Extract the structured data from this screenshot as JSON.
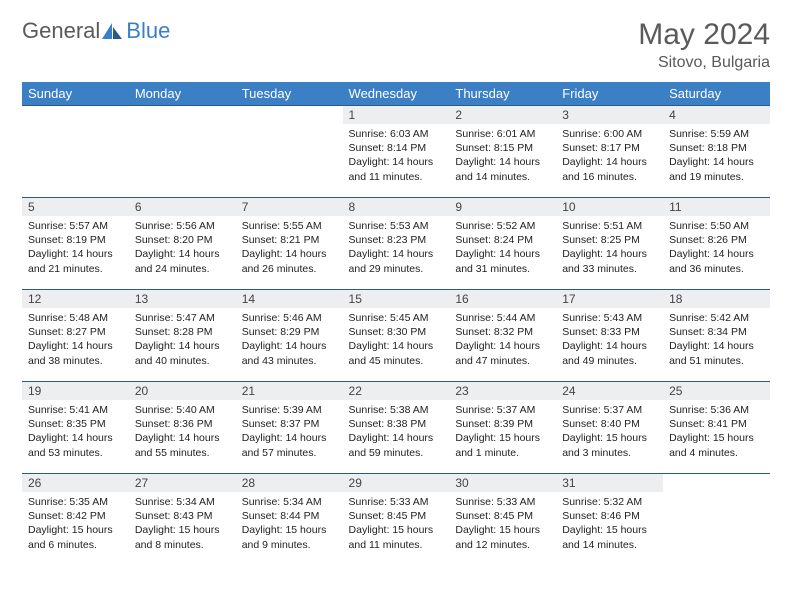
{
  "logo": {
    "part1": "General",
    "part2": "Blue"
  },
  "title": "May 2024",
  "location": "Sitovo, Bulgaria",
  "colors": {
    "headerBg": "#3b7fc4",
    "dayBg": "#eceef0",
    "rule": "#2a5a8a",
    "text": "#222",
    "muted": "#5a5a5a"
  },
  "weekdays": [
    "Sunday",
    "Monday",
    "Tuesday",
    "Wednesday",
    "Thursday",
    "Friday",
    "Saturday"
  ],
  "startOffset": 3,
  "days": [
    {
      "n": "1",
      "sr": "6:03 AM",
      "ss": "8:14 PM",
      "dl": "14 hours and 11 minutes."
    },
    {
      "n": "2",
      "sr": "6:01 AM",
      "ss": "8:15 PM",
      "dl": "14 hours and 14 minutes."
    },
    {
      "n": "3",
      "sr": "6:00 AM",
      "ss": "8:17 PM",
      "dl": "14 hours and 16 minutes."
    },
    {
      "n": "4",
      "sr": "5:59 AM",
      "ss": "8:18 PM",
      "dl": "14 hours and 19 minutes."
    },
    {
      "n": "5",
      "sr": "5:57 AM",
      "ss": "8:19 PM",
      "dl": "14 hours and 21 minutes."
    },
    {
      "n": "6",
      "sr": "5:56 AM",
      "ss": "8:20 PM",
      "dl": "14 hours and 24 minutes."
    },
    {
      "n": "7",
      "sr": "5:55 AM",
      "ss": "8:21 PM",
      "dl": "14 hours and 26 minutes."
    },
    {
      "n": "8",
      "sr": "5:53 AM",
      "ss": "8:23 PM",
      "dl": "14 hours and 29 minutes."
    },
    {
      "n": "9",
      "sr": "5:52 AM",
      "ss": "8:24 PM",
      "dl": "14 hours and 31 minutes."
    },
    {
      "n": "10",
      "sr": "5:51 AM",
      "ss": "8:25 PM",
      "dl": "14 hours and 33 minutes."
    },
    {
      "n": "11",
      "sr": "5:50 AM",
      "ss": "8:26 PM",
      "dl": "14 hours and 36 minutes."
    },
    {
      "n": "12",
      "sr": "5:48 AM",
      "ss": "8:27 PM",
      "dl": "14 hours and 38 minutes."
    },
    {
      "n": "13",
      "sr": "5:47 AM",
      "ss": "8:28 PM",
      "dl": "14 hours and 40 minutes."
    },
    {
      "n": "14",
      "sr": "5:46 AM",
      "ss": "8:29 PM",
      "dl": "14 hours and 43 minutes."
    },
    {
      "n": "15",
      "sr": "5:45 AM",
      "ss": "8:30 PM",
      "dl": "14 hours and 45 minutes."
    },
    {
      "n": "16",
      "sr": "5:44 AM",
      "ss": "8:32 PM",
      "dl": "14 hours and 47 minutes."
    },
    {
      "n": "17",
      "sr": "5:43 AM",
      "ss": "8:33 PM",
      "dl": "14 hours and 49 minutes."
    },
    {
      "n": "18",
      "sr": "5:42 AM",
      "ss": "8:34 PM",
      "dl": "14 hours and 51 minutes."
    },
    {
      "n": "19",
      "sr": "5:41 AM",
      "ss": "8:35 PM",
      "dl": "14 hours and 53 minutes."
    },
    {
      "n": "20",
      "sr": "5:40 AM",
      "ss": "8:36 PM",
      "dl": "14 hours and 55 minutes."
    },
    {
      "n": "21",
      "sr": "5:39 AM",
      "ss": "8:37 PM",
      "dl": "14 hours and 57 minutes."
    },
    {
      "n": "22",
      "sr": "5:38 AM",
      "ss": "8:38 PM",
      "dl": "14 hours and 59 minutes."
    },
    {
      "n": "23",
      "sr": "5:37 AM",
      "ss": "8:39 PM",
      "dl": "15 hours and 1 minute."
    },
    {
      "n": "24",
      "sr": "5:37 AM",
      "ss": "8:40 PM",
      "dl": "15 hours and 3 minutes."
    },
    {
      "n": "25",
      "sr": "5:36 AM",
      "ss": "8:41 PM",
      "dl": "15 hours and 4 minutes."
    },
    {
      "n": "26",
      "sr": "5:35 AM",
      "ss": "8:42 PM",
      "dl": "15 hours and 6 minutes."
    },
    {
      "n": "27",
      "sr": "5:34 AM",
      "ss": "8:43 PM",
      "dl": "15 hours and 8 minutes."
    },
    {
      "n": "28",
      "sr": "5:34 AM",
      "ss": "8:44 PM",
      "dl": "15 hours and 9 minutes."
    },
    {
      "n": "29",
      "sr": "5:33 AM",
      "ss": "8:45 PM",
      "dl": "15 hours and 11 minutes."
    },
    {
      "n": "30",
      "sr": "5:33 AM",
      "ss": "8:45 PM",
      "dl": "15 hours and 12 minutes."
    },
    {
      "n": "31",
      "sr": "5:32 AM",
      "ss": "8:46 PM",
      "dl": "15 hours and 14 minutes."
    }
  ],
  "labels": {
    "sunrise": "Sunrise:",
    "sunset": "Sunset:",
    "daylight": "Daylight:"
  }
}
